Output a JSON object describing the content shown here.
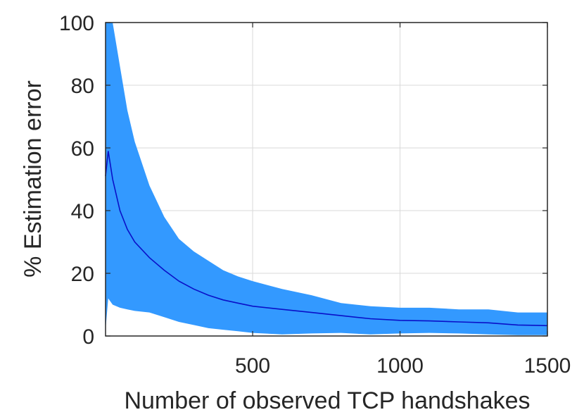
{
  "chart_data": {
    "type": "line",
    "title": "",
    "xlabel": "Number of observed TCP handshakes",
    "ylabel": "% Estimation error",
    "xlim": [
      1,
      1500
    ],
    "ylim": [
      0,
      100
    ],
    "xticks": [
      500,
      1000,
      1500
    ],
    "xtick_labels": [
      "500",
      "1000",
      "1500"
    ],
    "yticks": [
      0,
      20,
      40,
      60,
      80,
      100
    ],
    "ytick_labels": [
      "0",
      "20",
      "40",
      "60",
      "80",
      "100"
    ],
    "grid": true,
    "legend": "none",
    "colors": {
      "mean_line": "#0a10c8",
      "error_band": "#3399ff",
      "grid": "#d9d9d9",
      "axes": "#262626"
    },
    "series": [
      {
        "x": [
          1,
          10,
          25,
          50,
          75,
          100,
          150,
          200,
          250,
          300,
          350,
          400,
          450,
          500,
          600,
          700,
          800,
          900,
          1000,
          1100,
          1200,
          1300,
          1400,
          1500
        ],
        "y": [
          51,
          59,
          50,
          40,
          34,
          30,
          25,
          21,
          17.5,
          15,
          13,
          11.5,
          10.5,
          9.5,
          8.5,
          7.5,
          6.5,
          5.5,
          5,
          4.8,
          4.5,
          4.2,
          3.5,
          3.3
        ],
        "upper": [
          100,
          100,
          100,
          86,
          72,
          62,
          48,
          38,
          31,
          27,
          24,
          21,
          19,
          17.5,
          15,
          13,
          10.5,
          9.5,
          9,
          9,
          8.5,
          8.5,
          7.5,
          7.5
        ],
        "lower": [
          2,
          12,
          10,
          9,
          8.5,
          8,
          7.5,
          6,
          4.5,
          3.5,
          2.5,
          2,
          1.5,
          1,
          0.5,
          0.8,
          1,
          0.5,
          0.8,
          1,
          0.8,
          0.5,
          0.3,
          0.3
        ]
      }
    ]
  }
}
